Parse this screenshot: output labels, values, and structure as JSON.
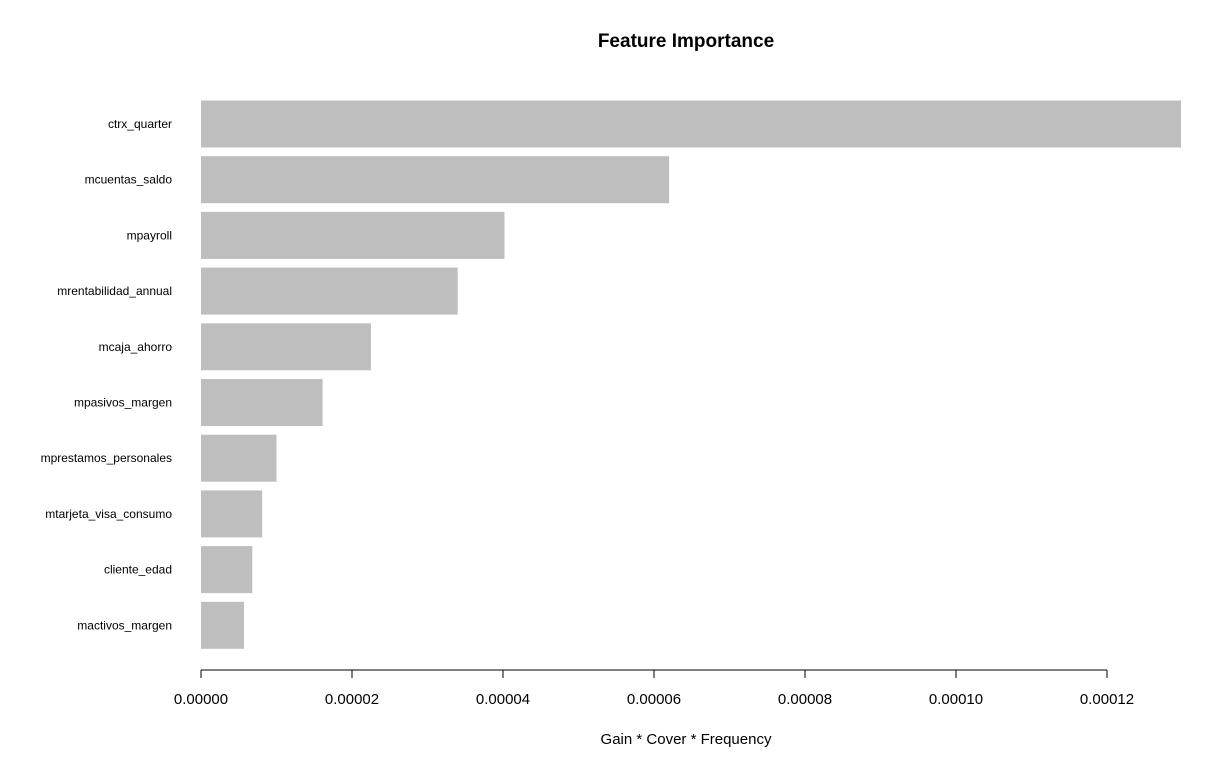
{
  "chart_data": {
    "type": "bar",
    "orientation": "horizontal",
    "title": "Feature Importance",
    "xlabel": "Gain * Cover * Frequency",
    "ylabel": "",
    "xlim": [
      0,
      0.00012
    ],
    "xticks": [
      0,
      2e-05,
      4e-05,
      6e-05,
      8e-05,
      0.0001,
      0.00012
    ],
    "xtick_labels": [
      "0.00000",
      "0.00002",
      "0.00004",
      "0.00006",
      "0.00008",
      "0.00010",
      "0.00012"
    ],
    "categories": [
      "ctrx_quarter",
      "mcuentas_saldo",
      "mpayroll",
      "mrentabilidad_annual",
      "mcaja_ahorro",
      "mpasivos_margen",
      "mprestamos_personales",
      "mtarjeta_visa_consumo",
      "cliente_edad",
      "mactivos_margen"
    ],
    "values": [
      0.0001298,
      6.2e-05,
      4.02e-05,
      3.4e-05,
      2.25e-05,
      1.61e-05,
      1e-05,
      8.1e-06,
      6.8e-06,
      5.7e-06
    ],
    "bar_color": "#bebebe",
    "grid": false,
    "legend": "none"
  }
}
